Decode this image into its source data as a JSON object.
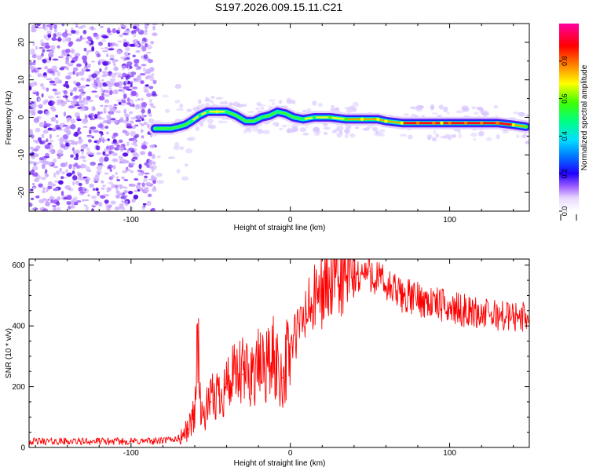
{
  "title": "S197.2026.009.15.11.C21",
  "chart_data": [
    {
      "type": "heatmap",
      "name": "spectrogram",
      "xlabel": "Height of straight line (km)",
      "ylabel": "Frequency (Hz)",
      "xlim": [
        -164,
        150
      ],
      "ylim": [
        -25,
        25
      ],
      "x_ticks": [
        -100,
        0,
        100
      ],
      "y_ticks": [
        -20,
        -10,
        0,
        10,
        20
      ],
      "colorbar": {
        "label": "Normalized spectral amplitude",
        "range": [
          0,
          1
        ],
        "ticks": [
          0.0,
          0.2,
          0.4,
          0.6,
          0.8
        ],
        "colors": [
          "#ffffff",
          "#d8c0ff",
          "#a060ff",
          "#6020e0",
          "#0000ff",
          "#00c0ff",
          "#00ff80",
          "#40ff00",
          "#ffff00",
          "#ff8000",
          "#ff0000",
          "#ff00a0"
        ]
      },
      "ridge": {
        "x": [
          -85,
          -75,
          -70,
          -66,
          -62,
          -57,
          -52,
          -46,
          -40,
          -34,
          -28,
          -23,
          -18,
          -13,
          -8,
          -3,
          2,
          8,
          15,
          25,
          35,
          45,
          55,
          60,
          70,
          80,
          90,
          95,
          100,
          110,
          120,
          130,
          140,
          148
        ],
        "freq": [
          -3,
          -3,
          -2.5,
          -2,
          -1,
          0.5,
          1.5,
          1.5,
          1.5,
          0.5,
          -1,
          -1,
          0,
          0.5,
          1.5,
          1,
          0,
          -0.5,
          0,
          0,
          -0.5,
          -0.5,
          -0.5,
          -1,
          -1.5,
          -1.5,
          -1.5,
          -1.5,
          -1.5,
          -1.5,
          -1.5,
          -1.5,
          -2,
          -2.5
        ],
        "amplitude": [
          0.45,
          0.4,
          0.35,
          0.5,
          0.6,
          0.6,
          0.65,
          0.8,
          0.6,
          0.55,
          0.5,
          0.55,
          0.6,
          0.55,
          0.6,
          0.55,
          0.5,
          0.6,
          0.65,
          0.7,
          0.75,
          0.8,
          0.85,
          0.8,
          0.85,
          0.9,
          0.9,
          0.8,
          0.9,
          0.95,
          0.95,
          0.9,
          0.8,
          0.7
        ]
      },
      "noise_region": {
        "x_max": -85,
        "amplitude": "low (0.1-0.25)"
      }
    },
    {
      "type": "line",
      "name": "snr",
      "xlabel": "Height of straight line (km)",
      "ylabel": "SNR (10 * v/v)",
      "xlim": [
        -164,
        150
      ],
      "ylim": [
        0,
        620
      ],
      "x_ticks": [
        -100,
        0,
        100
      ],
      "y_ticks": [
        0,
        200,
        400,
        600
      ],
      "color": "#ff0000",
      "series": [
        {
          "name": "SNR",
          "x": [
            -164,
            -140,
            -120,
            -100,
            -80,
            -70,
            -64,
            -60,
            -58,
            -56,
            -50,
            -40,
            -30,
            -20,
            -10,
            -5,
            0,
            10,
            20,
            30,
            40,
            50,
            60,
            70,
            80,
            100,
            120,
            140,
            150
          ],
          "values": [
            20,
            20,
            20,
            20,
            22,
            30,
            60,
            120,
            380,
            90,
            150,
            210,
            240,
            260,
            290,
            230,
            330,
            440,
            520,
            550,
            560,
            580,
            530,
            500,
            490,
            460,
            440,
            430,
            430
          ]
        }
      ]
    }
  ]
}
